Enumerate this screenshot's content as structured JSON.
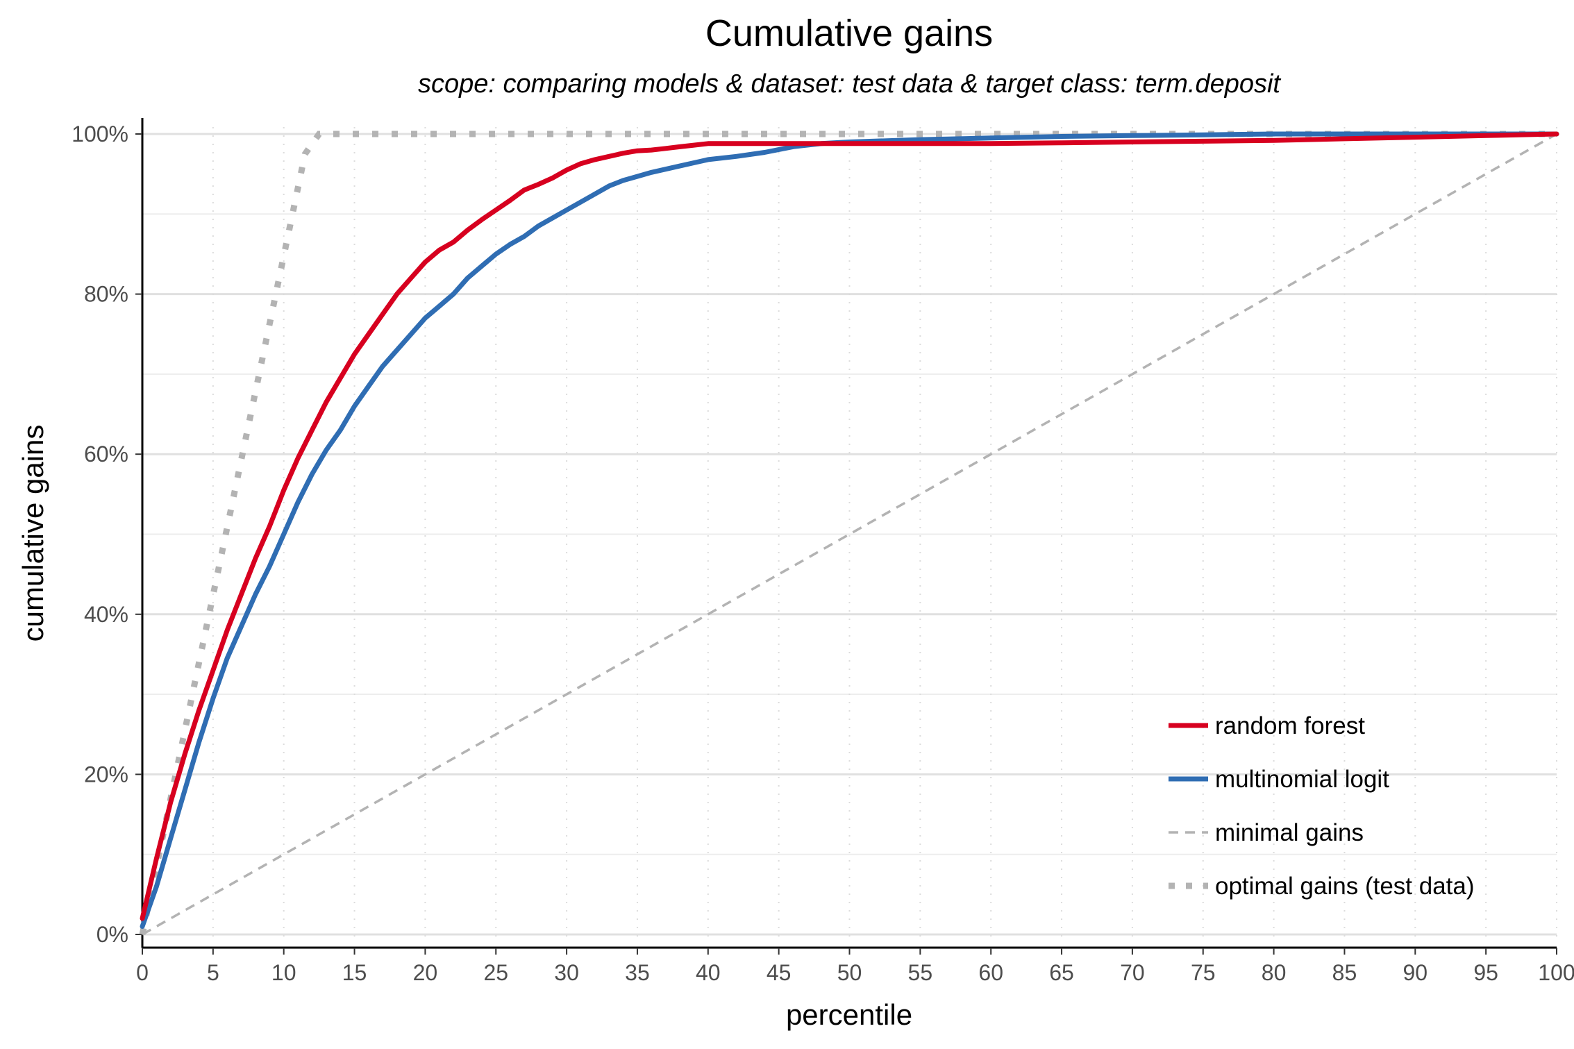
{
  "chart_data": {
    "type": "line",
    "title": "Cumulative gains",
    "subtitle": "scope: comparing models & dataset: test data & target class: term.deposit",
    "xlabel": "percentile",
    "ylabel": "cumulative gains",
    "xlim": [
      0,
      100
    ],
    "ylim": [
      0,
      1
    ],
    "x_ticks": [
      0,
      5,
      10,
      15,
      20,
      25,
      30,
      35,
      40,
      45,
      50,
      55,
      60,
      65,
      70,
      75,
      80,
      85,
      90,
      95,
      100
    ],
    "x_tick_labels": [
      "0",
      "5",
      "10",
      "15",
      "20",
      "25",
      "30",
      "35",
      "40",
      "45",
      "50",
      "55",
      "60",
      "65",
      "70",
      "75",
      "80",
      "85",
      "90",
      "95",
      "100"
    ],
    "y_ticks": [
      0,
      0.2,
      0.4,
      0.6,
      0.8,
      1.0
    ],
    "y_tick_labels": [
      "0%",
      "20%",
      "40%",
      "60%",
      "80%",
      "100%"
    ],
    "grid": true,
    "legend_position": "bottom-right",
    "series": [
      {
        "name": "random forest",
        "color": "#d7001f",
        "style": "solid",
        "x": [
          0,
          1,
          2,
          3,
          4,
          5,
          6,
          7,
          8,
          9,
          10,
          11,
          12,
          13,
          14,
          15,
          16,
          17,
          18,
          19,
          20,
          21,
          22,
          23,
          24,
          25,
          26,
          27,
          28,
          29,
          30,
          31,
          32,
          33,
          34,
          35,
          36,
          37,
          38,
          39,
          40,
          45,
          50,
          55,
          60,
          65,
          70,
          75,
          80,
          85,
          90,
          95,
          100
        ],
        "y": [
          0.02,
          0.095,
          0.165,
          0.225,
          0.28,
          0.33,
          0.38,
          0.425,
          0.47,
          0.51,
          0.555,
          0.595,
          0.63,
          0.665,
          0.695,
          0.725,
          0.75,
          0.775,
          0.8,
          0.82,
          0.84,
          0.855,
          0.865,
          0.88,
          0.893,
          0.905,
          0.917,
          0.93,
          0.937,
          0.945,
          0.955,
          0.963,
          0.968,
          0.972,
          0.976,
          0.979,
          0.98,
          0.982,
          0.984,
          0.986,
          0.988,
          0.988,
          0.988,
          0.988,
          0.988,
          0.989,
          0.99,
          0.991,
          0.992,
          0.994,
          0.996,
          0.998,
          1.0
        ]
      },
      {
        "name": "multinomial logit",
        "color": "#2f6db3",
        "style": "solid",
        "x": [
          0,
          1,
          2,
          3,
          4,
          5,
          6,
          7,
          8,
          9,
          10,
          11,
          12,
          13,
          14,
          15,
          16,
          17,
          18,
          19,
          20,
          21,
          22,
          23,
          24,
          25,
          26,
          27,
          28,
          29,
          30,
          31,
          32,
          33,
          34,
          35,
          36,
          37,
          38,
          39,
          40,
          42,
          44,
          46,
          48,
          50,
          55,
          60,
          65,
          70,
          75,
          80,
          85,
          90,
          95,
          100
        ],
        "y": [
          0.01,
          0.06,
          0.12,
          0.18,
          0.24,
          0.295,
          0.345,
          0.385,
          0.425,
          0.46,
          0.5,
          0.54,
          0.575,
          0.605,
          0.63,
          0.66,
          0.685,
          0.71,
          0.73,
          0.75,
          0.77,
          0.785,
          0.8,
          0.82,
          0.835,
          0.85,
          0.862,
          0.872,
          0.885,
          0.895,
          0.905,
          0.915,
          0.925,
          0.935,
          0.942,
          0.947,
          0.952,
          0.956,
          0.96,
          0.964,
          0.968,
          0.972,
          0.977,
          0.984,
          0.988,
          0.99,
          0.993,
          0.995,
          0.997,
          0.998,
          0.999,
          1.0,
          1.0,
          1.0,
          1.0,
          1.0
        ]
      },
      {
        "name": "minimal gains",
        "color": "#b3b3b3",
        "style": "dashed",
        "x": [
          0,
          100
        ],
        "y": [
          0,
          1
        ]
      },
      {
        "name": "optimal gains (test data)",
        "color": "#b3b3b3",
        "style": "dotted",
        "x": [
          0,
          11.5,
          12.5,
          100
        ],
        "y": [
          0,
          0.975,
          1.0,
          1.0
        ]
      }
    ]
  }
}
